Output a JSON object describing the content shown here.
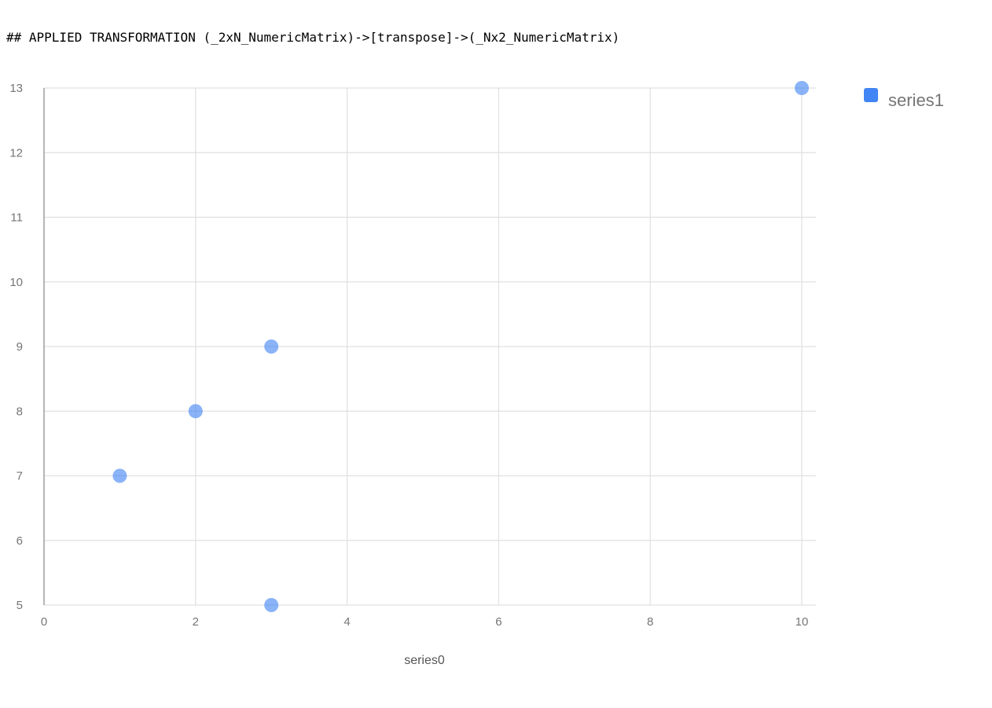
{
  "header": {
    "text": "## APPLIED TRANSFORMATION (_2xN_NumericMatrix)->[transpose]->(_Nx2_NumericMatrix)"
  },
  "chart_data": {
    "type": "scatter",
    "title": "",
    "xlabel": "series0",
    "ylabel": "",
    "xlim": [
      0,
      10
    ],
    "ylim": [
      5,
      13
    ],
    "xticks": [
      0,
      2,
      4,
      6,
      8,
      10
    ],
    "yticks": [
      5,
      6,
      7,
      8,
      9,
      10,
      11,
      12,
      13
    ],
    "grid": true,
    "legend_position": "top-right",
    "series": [
      {
        "name": "series1",
        "color": "#4285f4",
        "points": [
          {
            "x": 1,
            "y": 7
          },
          {
            "x": 2,
            "y": 8
          },
          {
            "x": 3,
            "y": 9
          },
          {
            "x": 3,
            "y": 5
          },
          {
            "x": 10,
            "y": 13
          }
        ]
      }
    ]
  }
}
